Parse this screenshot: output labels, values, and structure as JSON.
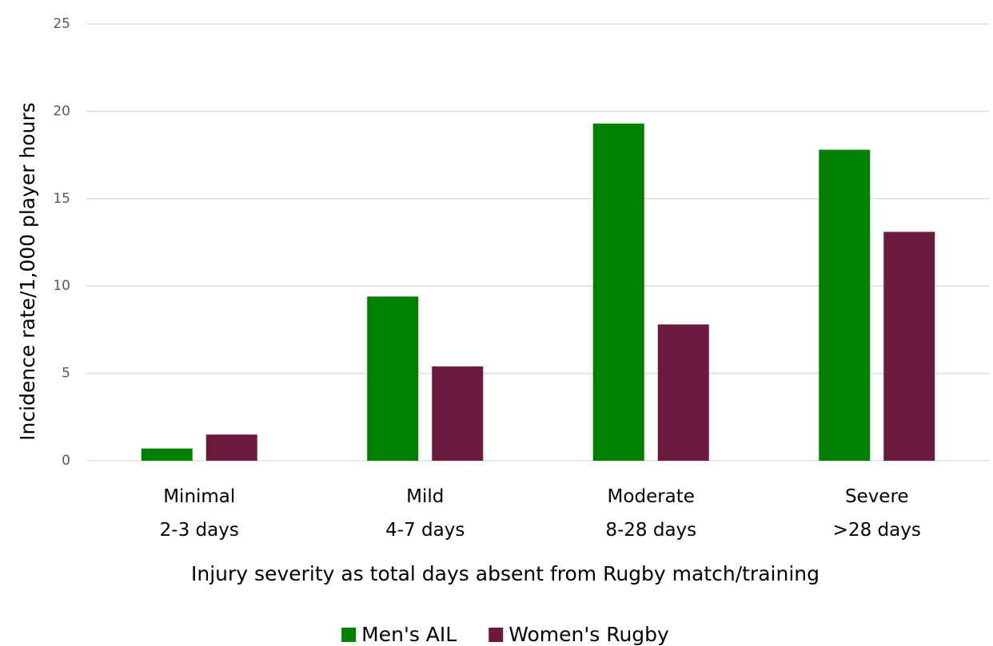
{
  "chart_data": {
    "type": "bar",
    "categories": [
      [
        "Minimal",
        "2-3 days"
      ],
      [
        "Mild",
        "4-7 days"
      ],
      [
        "Moderate",
        "8-28 days"
      ],
      [
        "Severe",
        ">28 days"
      ]
    ],
    "series": [
      {
        "name": "Men's AIL",
        "color": "#008000",
        "values": [
          0.7,
          9.4,
          19.3,
          17.8
        ]
      },
      {
        "name": "Women's Rugby",
        "color": "#6b1a3e",
        "values": [
          1.5,
          5.4,
          7.8,
          13.1
        ]
      }
    ],
    "y_label": "Incidence rate/1,000 player hours",
    "x_label": "Injury severity as total days absent from Rugby match/training",
    "ylim": [
      0,
      25
    ],
    "yticks": [
      0,
      5,
      10,
      15,
      20,
      25
    ],
    "grid": true,
    "legend": "bottom"
  }
}
